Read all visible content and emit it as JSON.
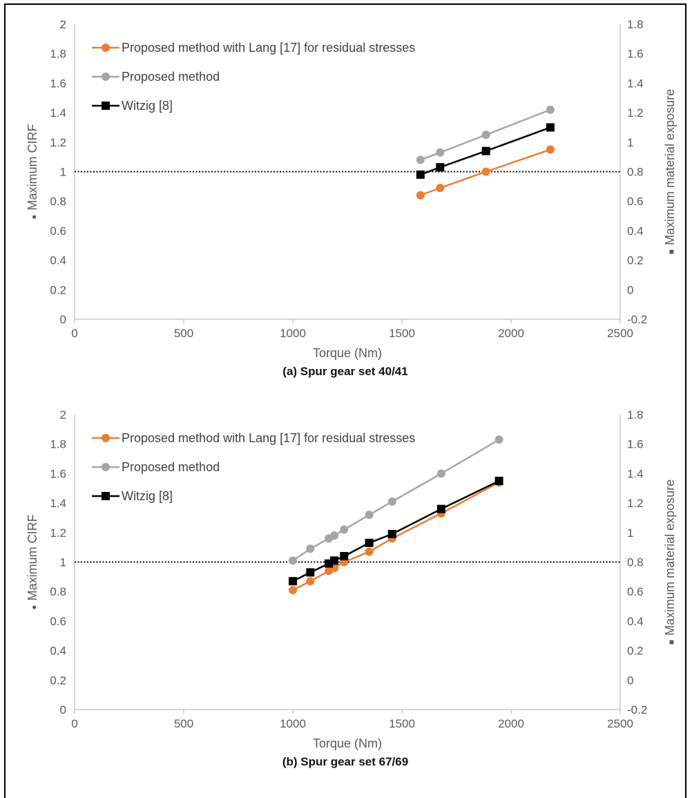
{
  "colors": {
    "lang": "#ED7D31",
    "proposed": "#A5A5A5",
    "witzig": "#000000",
    "axis": "#BFBFBF",
    "text": "#595959",
    "reference": "#000000"
  },
  "chart_data": [
    {
      "type": "line",
      "caption": "(a) Spur gear set 40/41",
      "xlabel": "Torque (Nm)",
      "ylabel": "Maximum CIRF",
      "ylabel_marker": "●",
      "y2label": "Maximum material exposure",
      "y2label_marker": "■",
      "xlim": [
        0,
        2500
      ],
      "xticks": [
        0,
        500,
        1000,
        1500,
        2000,
        2500
      ],
      "ylim": [
        0,
        2
      ],
      "yticks": [
        0,
        0.2,
        0.4,
        0.6,
        0.8,
        1,
        1.2,
        1.4,
        1.6,
        1.8,
        2
      ],
      "ytick_labels": [
        "0",
        "0.2",
        "0.4",
        "0.6",
        "0.8",
        "1",
        "1.2",
        "1.4",
        "1.6",
        "1.8",
        "2"
      ],
      "y2lim": [
        -0.2,
        1.8
      ],
      "y2ticks": [
        -0.2,
        0,
        0.2,
        0.4,
        0.6,
        0.8,
        1,
        1.2,
        1.4,
        1.6,
        1.8
      ],
      "y2tick_labels": [
        "-0.2",
        "0",
        "0.2",
        "0.4",
        "0.6",
        "0.8",
        "1",
        "1.2",
        "1.4",
        "1.6",
        "1.8"
      ],
      "reference_line": 1,
      "legend_position": "top-left",
      "grid": false,
      "series": [
        {
          "name": "Proposed method with Lang [17] for residual stresses",
          "axis": "left",
          "marker": "circle",
          "color_key": "lang",
          "x": [
            1585,
            1675,
            1885,
            2180
          ],
          "y": [
            0.84,
            0.89,
            1.0,
            1.15
          ]
        },
        {
          "name": "Proposed method",
          "axis": "left",
          "marker": "circle",
          "color_key": "proposed",
          "x": [
            1585,
            1675,
            1885,
            2180
          ],
          "y": [
            1.08,
            1.13,
            1.25,
            1.42
          ]
        },
        {
          "name": "Witzig [8]",
          "axis": "right",
          "marker": "square",
          "color_key": "witzig",
          "x": [
            1585,
            1675,
            1885,
            2180
          ],
          "y": [
            0.78,
            0.83,
            0.94,
            1.1
          ]
        }
      ]
    },
    {
      "type": "line",
      "caption": "(b) Spur gear set 67/69",
      "xlabel": "Torque (Nm)",
      "ylabel": "Maximum CIRF",
      "ylabel_marker": "●",
      "y2label": "Maximum material exposure",
      "y2label_marker": "■",
      "xlim": [
        0,
        2500
      ],
      "xticks": [
        0,
        500,
        1000,
        1500,
        2000,
        2500
      ],
      "ylim": [
        0,
        2
      ],
      "yticks": [
        0,
        0.2,
        0.4,
        0.6,
        0.8,
        1,
        1.2,
        1.4,
        1.6,
        1.8,
        2
      ],
      "ytick_labels": [
        "0",
        "0.2",
        "0.4",
        "0.6",
        "0.8",
        "1",
        "1.2",
        "1.4",
        "1.6",
        "1.8",
        "2"
      ],
      "y2lim": [
        -0.2,
        1.8
      ],
      "y2ticks": [
        -0.2,
        0,
        0.2,
        0.4,
        0.6,
        0.8,
        1,
        1.2,
        1.4,
        1.6,
        1.8
      ],
      "y2tick_labels": [
        "-0.2",
        "0",
        "0.2",
        "0.4",
        "0.6",
        "0.8",
        "1",
        "1.2",
        "1.4",
        "1.6",
        "1.8"
      ],
      "reference_line": 1,
      "legend_position": "top-left",
      "grid": false,
      "series": [
        {
          "name": "Proposed method with Lang [17] for residual stresses",
          "axis": "left",
          "marker": "circle",
          "color_key": "lang",
          "x": [
            1000,
            1080,
            1165,
            1190,
            1235,
            1350,
            1455,
            1680,
            1945
          ],
          "y": [
            0.81,
            0.87,
            0.94,
            0.96,
            1.0,
            1.07,
            1.16,
            1.33,
            1.54
          ]
        },
        {
          "name": "Proposed method",
          "axis": "left",
          "marker": "circle",
          "color_key": "proposed",
          "x": [
            1000,
            1080,
            1165,
            1190,
            1235,
            1350,
            1455,
            1680,
            1945
          ],
          "y": [
            1.01,
            1.09,
            1.16,
            1.18,
            1.22,
            1.32,
            1.41,
            1.6,
            1.83
          ]
        },
        {
          "name": "Witzig [8]",
          "axis": "right",
          "marker": "square",
          "color_key": "witzig",
          "x": [
            1000,
            1080,
            1165,
            1190,
            1235,
            1350,
            1455,
            1680,
            1945
          ],
          "y": [
            0.67,
            0.73,
            0.79,
            0.81,
            0.84,
            0.93,
            0.99,
            1.16,
            1.35
          ]
        }
      ]
    }
  ]
}
